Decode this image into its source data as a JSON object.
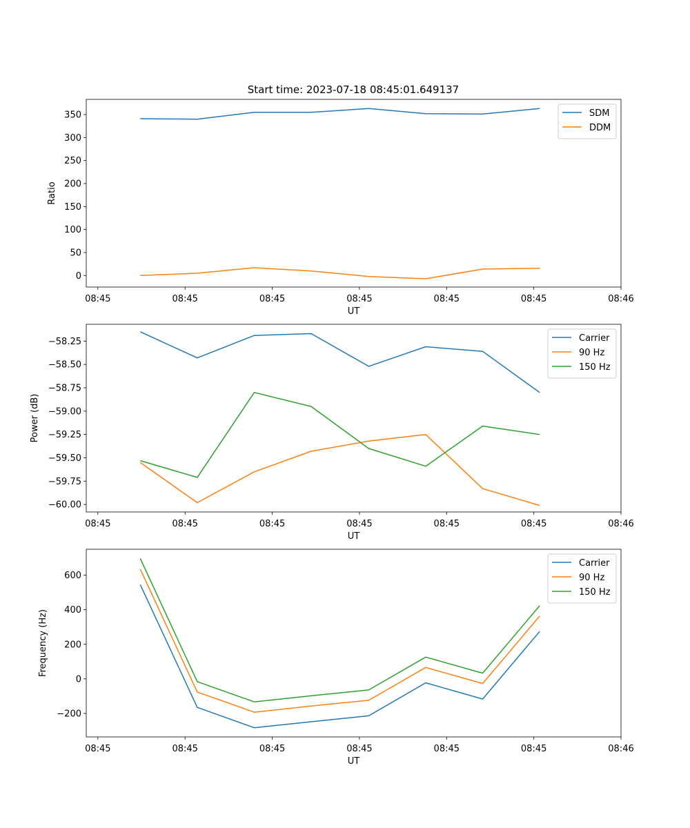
{
  "figure": {
    "title": "Start time: 2023-07-18 08:45:01.649137"
  },
  "chart_data": [
    {
      "type": "line",
      "title": "Start time: 2023-07-18 08:45:01.649137",
      "xlabel": "UT",
      "ylabel": "Ratio",
      "xlim": [
        0,
        9.2
      ],
      "ylim": [
        -25,
        383
      ],
      "x_ticks": [
        0.2,
        1.7,
        3.2,
        4.7,
        6.2,
        7.7,
        9.2
      ],
      "x_tick_labels": [
        "08:45",
        "08:45",
        "08:45",
        "08:45",
        "08:45",
        "08:45",
        "08:46"
      ],
      "y_ticks": [
        0,
        50,
        100,
        150,
        200,
        250,
        300,
        350
      ],
      "y_tick_labels": [
        "0",
        "50",
        "100",
        "150",
        "200",
        "250",
        "300",
        "350"
      ],
      "legend_position": "top-right",
      "x": [
        0.93,
        1.91,
        2.89,
        3.87,
        4.86,
        5.84,
        6.82,
        7.8
      ],
      "series": [
        {
          "name": "SDM",
          "color": "#1f77b4",
          "values": [
            341,
            340,
            355,
            355,
            363,
            352,
            351,
            363
          ]
        },
        {
          "name": "DDM",
          "color": "#ff7f0e",
          "values": [
            0,
            5,
            17,
            10,
            -2,
            -7,
            14,
            16
          ]
        }
      ]
    },
    {
      "type": "line",
      "title": "",
      "xlabel": "UT",
      "ylabel": "Power (dB)",
      "xlim": [
        0,
        9.2
      ],
      "ylim": [
        -60.08,
        -58.07
      ],
      "x_ticks": [
        0.2,
        1.7,
        3.2,
        4.7,
        6.2,
        7.7,
        9.2
      ],
      "x_tick_labels": [
        "08:45",
        "08:45",
        "08:45",
        "08:45",
        "08:45",
        "08:45",
        "08:46"
      ],
      "y_ticks": [
        -60.0,
        -59.75,
        -59.5,
        -59.25,
        -59.0,
        -58.75,
        -58.5,
        -58.25
      ],
      "y_tick_labels": [
        "−60.00",
        "−59.75",
        "−59.50",
        "−59.25",
        "−59.00",
        "−58.75",
        "−58.50",
        "−58.25"
      ],
      "legend_position": "top-right",
      "x": [
        0.93,
        1.91,
        2.89,
        3.87,
        4.86,
        5.84,
        6.82,
        7.8
      ],
      "series": [
        {
          "name": "Carrier",
          "color": "#1f77b4",
          "values": [
            -58.15,
            -58.43,
            -58.19,
            -58.17,
            -58.52,
            -58.31,
            -58.36,
            -58.8
          ]
        },
        {
          "name": "90 Hz",
          "color": "#ff7f0e",
          "values": [
            -59.55,
            -59.98,
            -59.65,
            -59.43,
            -59.32,
            -59.25,
            -59.83,
            -60.01
          ]
        },
        {
          "name": "150 Hz",
          "color": "#2ca02c",
          "values": [
            -59.53,
            -59.71,
            -58.8,
            -58.95,
            -59.4,
            -59.59,
            -59.16,
            -59.25
          ]
        }
      ]
    },
    {
      "type": "line",
      "title": "",
      "xlabel": "UT",
      "ylabel": "Frequency (Hz)",
      "xlim": [
        0,
        9.2
      ],
      "ylim": [
        -336,
        750
      ],
      "x_ticks": [
        0.2,
        1.7,
        3.2,
        4.7,
        6.2,
        7.7,
        9.2
      ],
      "x_tick_labels": [
        "08:45",
        "08:45",
        "08:45",
        "08:45",
        "08:45",
        "08:45",
        "08:46"
      ],
      "y_ticks": [
        -200,
        0,
        200,
        400,
        600
      ],
      "y_tick_labels": [
        "−200",
        "0",
        "200",
        "400",
        "600"
      ],
      "legend_position": "top-right",
      "x": [
        0.93,
        1.91,
        2.89,
        3.87,
        4.86,
        5.84,
        6.82,
        7.8
      ],
      "series": [
        {
          "name": "Carrier",
          "color": "#1f77b4",
          "values": [
            545,
            -165,
            -283,
            -248,
            -214,
            -23,
            -117,
            274
          ]
        },
        {
          "name": "90 Hz",
          "color": "#ff7f0e",
          "values": [
            635,
            -76,
            -193,
            -157,
            -124,
            66,
            -27,
            363
          ]
        },
        {
          "name": "150 Hz",
          "color": "#2ca02c",
          "values": [
            696,
            -16,
            -133,
            -98,
            -64,
            126,
            33,
            423
          ]
        }
      ]
    }
  ]
}
